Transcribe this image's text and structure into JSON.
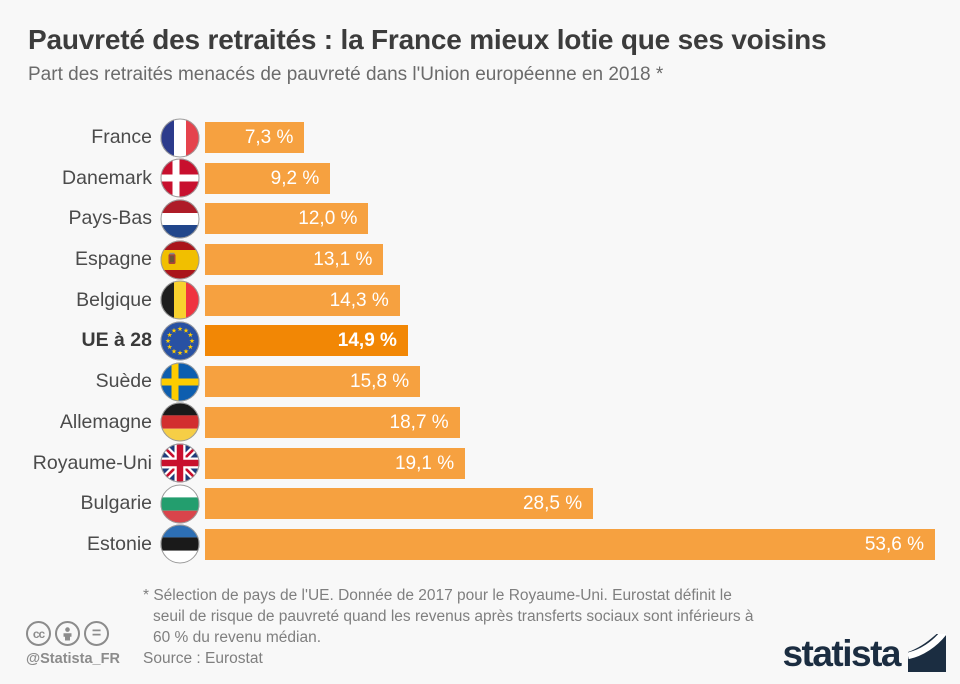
{
  "header": {
    "title": "Pauvreté des retraités : la France mieux lotie que ses voisins",
    "subtitle": "Part des retraités menacés de pauvreté dans l'Union européenne en 2018 *"
  },
  "chart_data": {
    "type": "bar",
    "orientation": "horizontal",
    "title": "Pauvreté des retraités : la France mieux lotie que ses voisins",
    "subtitle": "Part des retraités menacés de pauvreté dans l'Union européenne en 2018 *",
    "unit": "%",
    "xlim": [
      0,
      53.6
    ],
    "grid": false,
    "bar_color": "#F6A140",
    "highlight_color": "#F28705",
    "series": [
      {
        "label": "France",
        "flag": "france-flag-icon",
        "value": 7.3,
        "display": "7,3 %",
        "highlight": false
      },
      {
        "label": "Danemark",
        "flag": "danemark-flag-icon",
        "value": 9.2,
        "display": "9,2 %",
        "highlight": false
      },
      {
        "label": "Pays-Bas",
        "flag": "pays-bas-flag-icon",
        "value": 12.0,
        "display": "12,0 %",
        "highlight": false
      },
      {
        "label": "Espagne",
        "flag": "espagne-flag-icon",
        "value": 13.1,
        "display": "13,1 %",
        "highlight": false
      },
      {
        "label": "Belgique",
        "flag": "belgique-flag-icon",
        "value": 14.3,
        "display": "14,3 %",
        "highlight": false
      },
      {
        "label": "UE à 28",
        "flag": "union-europeenne-flag-icon",
        "value": 14.9,
        "display": "14,9 %",
        "highlight": true
      },
      {
        "label": "Suède",
        "flag": "suede-flag-icon",
        "value": 15.8,
        "display": "15,8 %",
        "highlight": false
      },
      {
        "label": "Allemagne",
        "flag": "allemagne-flag-icon",
        "value": 18.7,
        "display": "18,7 %",
        "highlight": false
      },
      {
        "label": "Royaume-Uni",
        "flag": "royaume-uni-flag-icon",
        "value": 19.1,
        "display": "19,1 %",
        "highlight": false
      },
      {
        "label": "Bulgarie",
        "flag": "bulgarie-flag-icon",
        "value": 28.5,
        "display": "28,5 %",
        "highlight": false
      },
      {
        "label": "Estonie",
        "flag": "estonie-flag-icon",
        "value": 53.6,
        "display": "53,6 %",
        "highlight": false
      }
    ]
  },
  "footer": {
    "footnote": "* Sélection de pays de l'UE. Donnée de 2017 pour le Royaume-Uni. Eurostat définit le seuil de risque de pauvreté quand les revenus après transferts sociaux sont inférieurs à 60 % du revenu médian.",
    "source": "Source : Eurostat",
    "handle": "@Statista_FR",
    "cc_icons": [
      "cc",
      "by",
      "nd"
    ],
    "logo_text": "statista"
  }
}
